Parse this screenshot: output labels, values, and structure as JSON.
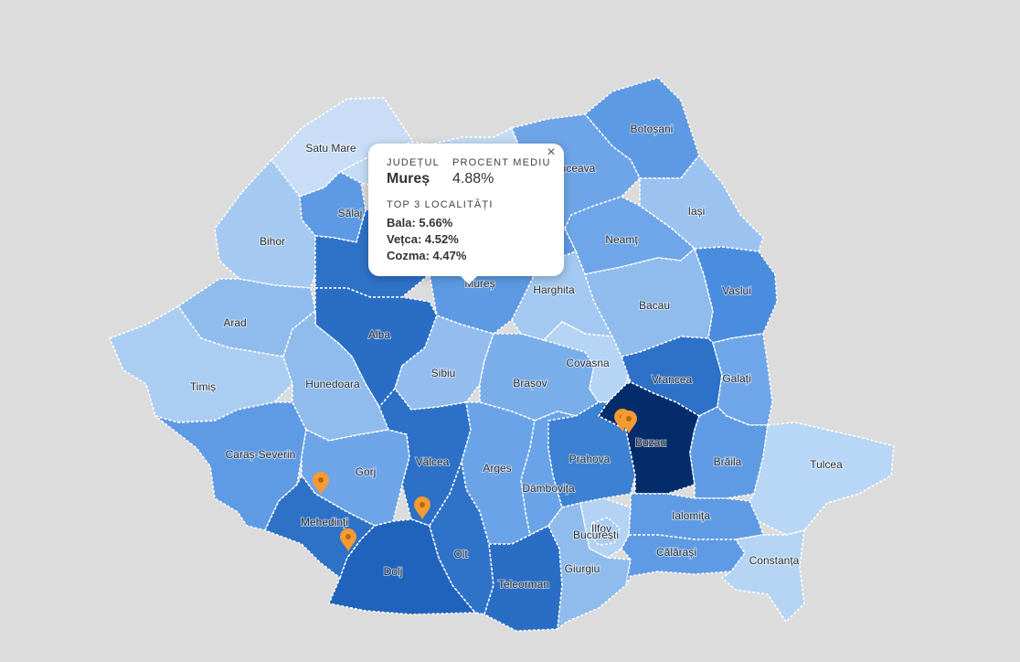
{
  "map": {
    "counties": [
      {
        "id": "satu-mare",
        "label": "Satu Mare",
        "color": "#c9def6"
      },
      {
        "id": "maramures",
        "label": "",
        "color": "#c5dbf5"
      },
      {
        "id": "botosani",
        "label": "Botoșani",
        "color": "#5d9ae3"
      },
      {
        "id": "suceava",
        "label": "Suceava",
        "color": "#6da5e8"
      },
      {
        "id": "salaj",
        "label": "Sălaj",
        "color": "#5d9ae3"
      },
      {
        "id": "bihor",
        "label": "Bihor",
        "color": "#a5c9f1"
      },
      {
        "id": "cluj",
        "label": "",
        "color": "#2e72c8"
      },
      {
        "id": "bistrita",
        "label": "",
        "color": "#6fa7e9"
      },
      {
        "id": "iasi",
        "label": "Iași",
        "color": "#9cc3f0"
      },
      {
        "id": "neamt",
        "label": "Neamț",
        "color": "#6ea6e9"
      },
      {
        "id": "mures",
        "label": "Mureș",
        "color": "#5d9ae3"
      },
      {
        "id": "harghita",
        "label": "Harghita",
        "color": "#a3c8f1"
      },
      {
        "id": "bacau",
        "label": "Bacau",
        "color": "#8fbbed"
      },
      {
        "id": "vaslui",
        "label": "Vaslui",
        "color": "#4a8ddf"
      },
      {
        "id": "arad",
        "label": "Arad",
        "color": "#8fbbed"
      },
      {
        "id": "alba",
        "label": "Alba",
        "color": "#2a6dc5"
      },
      {
        "id": "timis",
        "label": "Timiș",
        "color": "#abcdf2"
      },
      {
        "id": "hunedoara",
        "label": "Hunedoara",
        "color": "#8fbbed"
      },
      {
        "id": "sibiu",
        "label": "Sibiu",
        "color": "#93bdee"
      },
      {
        "id": "brasov",
        "label": "Brașov",
        "color": "#7aaeeb"
      },
      {
        "id": "covasna",
        "label": "Covasna",
        "color": "#b6d4f4"
      },
      {
        "id": "vrancea",
        "label": "Vrancea",
        "color": "#2d71c8"
      },
      {
        "id": "galati",
        "label": "Galați",
        "color": "#6ea6e9"
      },
      {
        "id": "caras",
        "label": "Caraș-Severin",
        "color": "#5f9be4"
      },
      {
        "id": "gorj",
        "label": "Gorj",
        "color": "#6da5e8"
      },
      {
        "id": "valcea",
        "label": "Vâlcea",
        "color": "#2c70c7"
      },
      {
        "id": "arges",
        "label": "Arges",
        "color": "#6aa3e8"
      },
      {
        "id": "dambovita",
        "label": "Dâmbovița",
        "color": "#6aa3e8"
      },
      {
        "id": "prahova",
        "label": "Prahova",
        "color": "#3c81d2"
      },
      {
        "id": "buzau",
        "label": "Buzau",
        "color": "#042c6b"
      },
      {
        "id": "braila",
        "label": "Brăila",
        "color": "#5f9be4"
      },
      {
        "id": "tulcea",
        "label": "Tulcea",
        "color": "#b8d6f5"
      },
      {
        "id": "mehedinti",
        "label": "Mehedinți",
        "color": "#2e72c8"
      },
      {
        "id": "dolj",
        "label": "Dolj",
        "color": "#1f63bd"
      },
      {
        "id": "olt",
        "label": "Olt",
        "color": "#2f73c9"
      },
      {
        "id": "teleorman",
        "label": "Teleorman",
        "color": "#2a6dc5"
      },
      {
        "id": "giurgiu",
        "label": "Giurgiu",
        "color": "#8fbbed"
      },
      {
        "id": "ilfov",
        "label": "Ilfov",
        "color": "#b3d2f4"
      },
      {
        "id": "bucuresti",
        "label": "București",
        "color": "#a9ccf2"
      },
      {
        "id": "ialomita",
        "label": "Ialomița",
        "color": "#5f9be4"
      },
      {
        "id": "calarasi",
        "label": "Călărași",
        "color": "#5f9be4"
      },
      {
        "id": "constanta",
        "label": "Constanța",
        "color": "#b5d4f4"
      }
    ],
    "marker_color": "#f59b33"
  },
  "popup": {
    "county_caption": "JUDEȚUL",
    "county_name": "Mureș",
    "avg_caption": "PROCENT MEDIU",
    "avg_value": "4.88%",
    "top_caption": "TOP 3 LOCALITĂȚI",
    "localities": [
      "Bala: 5.66%",
      "Vețca: 4.52%",
      "Cozma: 4.47%"
    ],
    "close_symbol": "×"
  }
}
